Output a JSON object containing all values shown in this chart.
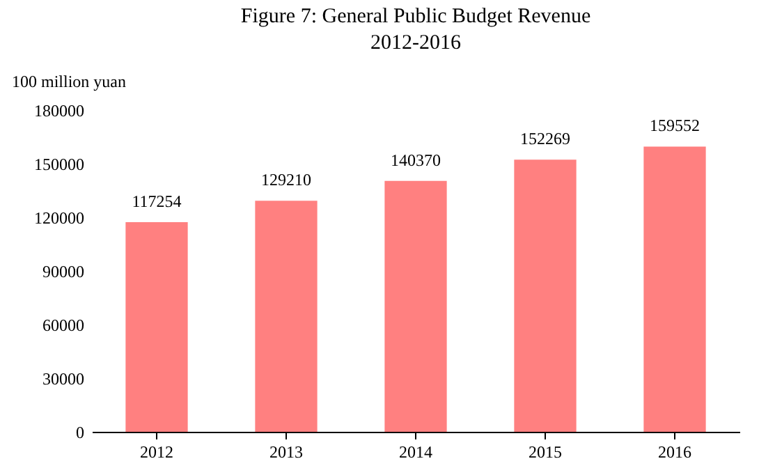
{
  "chart_data": {
    "type": "bar",
    "title": "Figure 7: General Public Budget Revenue",
    "subtitle": "2012-2016",
    "ylabel": "100 million yuan",
    "categories": [
      "2012",
      "2013",
      "2014",
      "2015",
      "2016"
    ],
    "values": [
      117254,
      129210,
      140370,
      152269,
      159552
    ],
    "color": "#ff8080",
    "ylim": [
      0,
      180000
    ],
    "yticks": [
      0,
      30000,
      60000,
      90000,
      120000,
      150000,
      180000
    ],
    "grid": false,
    "data_labels": true
  }
}
